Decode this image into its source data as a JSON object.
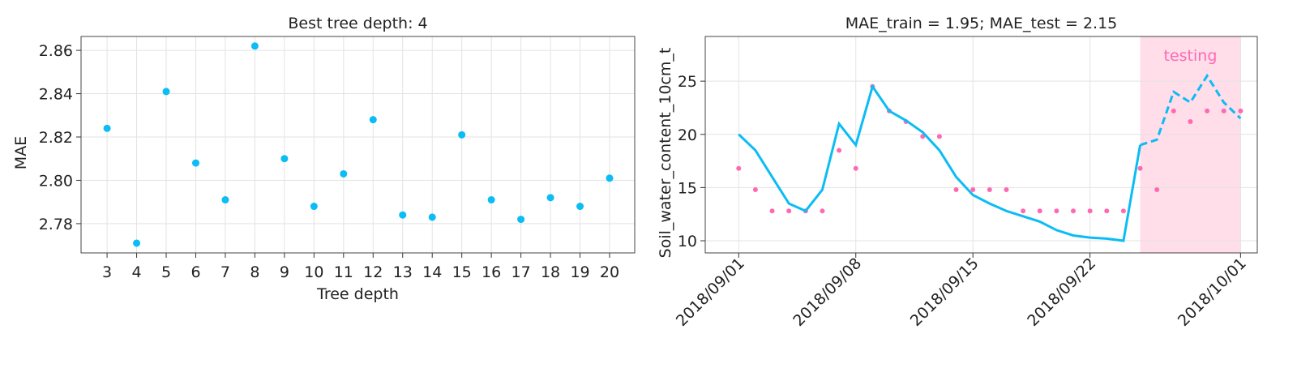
{
  "chart_data": [
    {
      "type": "scatter",
      "title": "Best tree depth: 4",
      "x_label": "Tree depth",
      "y_label": "MAE",
      "x": [
        3,
        4,
        5,
        6,
        7,
        8,
        9,
        10,
        11,
        12,
        13,
        14,
        15,
        16,
        17,
        18,
        19,
        20
      ],
      "values": [
        2.824,
        2.771,
        2.841,
        2.808,
        2.791,
        2.862,
        2.81,
        2.788,
        2.803,
        2.828,
        2.784,
        2.783,
        2.821,
        2.791,
        2.782,
        2.792,
        2.788,
        2.801
      ],
      "color": "#0bbcf5",
      "xlim": [
        2.12,
        20.85
      ],
      "xticks": [
        3,
        4,
        5,
        6,
        7,
        8,
        9,
        10,
        11,
        12,
        13,
        14,
        15,
        16,
        17,
        18,
        19,
        20
      ],
      "ylim": [
        2.7665,
        2.8664
      ],
      "yticks": [
        2.78,
        {
          "value": 2.8,
          "label": "2.80"
        },
        2.82,
        2.84,
        2.86
      ],
      "grid": true
    },
    {
      "type": "line",
      "title": "MAE_train = 1.95; MAE_test = 2.15",
      "y_label": "Soil_water_content_10cm_t",
      "x": [
        "2018/09/01",
        "2018/09/02",
        "2018/09/03",
        "2018/09/04",
        "2018/09/05",
        "2018/09/06",
        "2018/09/07",
        "2018/09/08",
        "2018/09/09",
        "2018/09/10",
        "2018/09/11",
        "2018/09/12",
        "2018/09/13",
        "2018/09/14",
        "2018/09/15",
        "2018/09/16",
        "2018/09/17",
        "2018/09/18",
        "2018/09/19",
        "2018/09/20",
        "2018/09/21",
        "2018/09/22",
        "2018/09/23",
        "2018/09/24",
        "2018/09/25",
        "2018/09/26",
        "2018/09/27",
        "2018/09/28",
        "2018/09/29",
        "2018/09/30",
        "2018/10/01"
      ],
      "series": [
        {
          "color": "#ff69b4",
          "style": "dots",
          "values": [
            16.8,
            14.8,
            12.8,
            12.8,
            12.8,
            12.8,
            18.5,
            16.8,
            24.5,
            22.2,
            21.2,
            19.8,
            19.8,
            14.8,
            14.8,
            14.8,
            14.8,
            12.8,
            12.8,
            12.8,
            12.8,
            12.8,
            12.8,
            12.8,
            16.8,
            14.8,
            22.2,
            21.2,
            22.2,
            22.2,
            22.2
          ]
        },
        {
          "color": "#0bbcf5",
          "style": "solid",
          "values": [
            20.0,
            18.5,
            16.0,
            13.5,
            12.8,
            14.8,
            21.0,
            19.0,
            24.5,
            22.2,
            21.3,
            20.2,
            18.5,
            16.0,
            14.3,
            13.5,
            12.8,
            12.3,
            11.8,
            11.0,
            10.5,
            10.3,
            10.2,
            10.0,
            19.0,
            null,
            null,
            null,
            null,
            null,
            null
          ]
        },
        {
          "color": "#0bbcf5",
          "style": "dashed",
          "values": [
            null,
            null,
            null,
            null,
            null,
            null,
            null,
            null,
            null,
            null,
            null,
            null,
            null,
            null,
            null,
            null,
            null,
            null,
            null,
            null,
            null,
            null,
            null,
            null,
            19.0,
            19.5,
            24.0,
            23.0,
            25.5,
            23.0,
            21.5
          ]
        }
      ],
      "span": [
        "2018/09/25",
        "2018/10/01"
      ],
      "span_label": "testing",
      "span_color": "#ffdde9",
      "span_label_color": "#ff69b4",
      "xlim": [
        "2018/08/30",
        "2018/10/02"
      ],
      "xticks": [
        "2018/09/01",
        "2018/09/08",
        "2018/09/15",
        "2018/09/22",
        "2018/10/01"
      ],
      "ylim": [
        8.86,
        29.2
      ],
      "yticks": [
        10,
        15,
        20,
        25
      ],
      "grid": true
    }
  ]
}
